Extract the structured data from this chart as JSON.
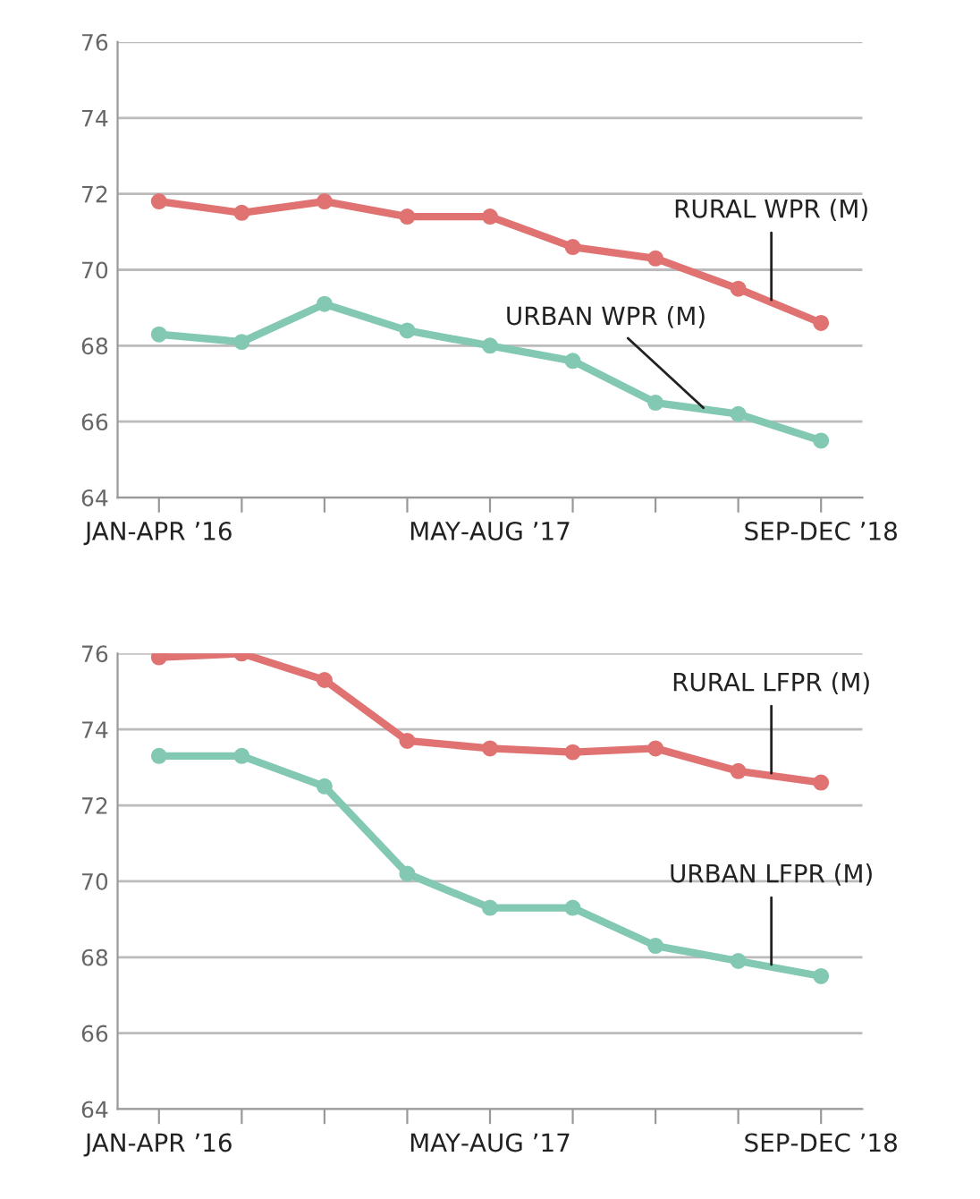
{
  "chart_data": [
    {
      "type": "line",
      "categories": [
        "JAN‑APR ’16",
        null,
        null,
        null,
        "MAY‑AUG ’17",
        null,
        null,
        null,
        "SEP‑DEC ’18"
      ],
      "ylim": [
        64,
        76
      ],
      "yticks": [
        64,
        66,
        68,
        70,
        72,
        74,
        76
      ],
      "grid": "y",
      "marker": "circle",
      "line_style": "solid",
      "legend": false,
      "series": [
        {
          "name": "RURAL WPR (M)",
          "color": "#e07272",
          "values": [
            71.8,
            71.5,
            71.8,
            71.4,
            71.4,
            70.6,
            70.3,
            69.5,
            68.6
          ]
        },
        {
          "name": "URBAN WPR (M)",
          "color": "#82c8b2",
          "values": [
            68.3,
            68.1,
            69.1,
            68.4,
            68.0,
            67.6,
            66.5,
            66.2,
            65.5
          ]
        }
      ]
    },
    {
      "type": "line",
      "categories": [
        "JAN‑APR ’16",
        null,
        null,
        null,
        "MAY‑AUG ’17",
        null,
        null,
        null,
        "SEP‑DEC ’18"
      ],
      "ylim": [
        64,
        76
      ],
      "yticks": [
        64,
        66,
        68,
        70,
        72,
        74,
        76
      ],
      "grid": "y",
      "marker": "circle",
      "line_style": "solid",
      "legend": false,
      "series": [
        {
          "name": "RURAL LFPR (M)",
          "color": "#e07272",
          "values": [
            75.9,
            76.0,
            75.3,
            73.7,
            73.5,
            73.4,
            73.5,
            72.9,
            72.6
          ]
        },
        {
          "name": "URBAN LFPR (M)",
          "color": "#82c8b2",
          "values": [
            73.3,
            73.3,
            72.5,
            70.2,
            69.3,
            69.3,
            68.3,
            67.9,
            67.5
          ]
        }
      ]
    }
  ]
}
